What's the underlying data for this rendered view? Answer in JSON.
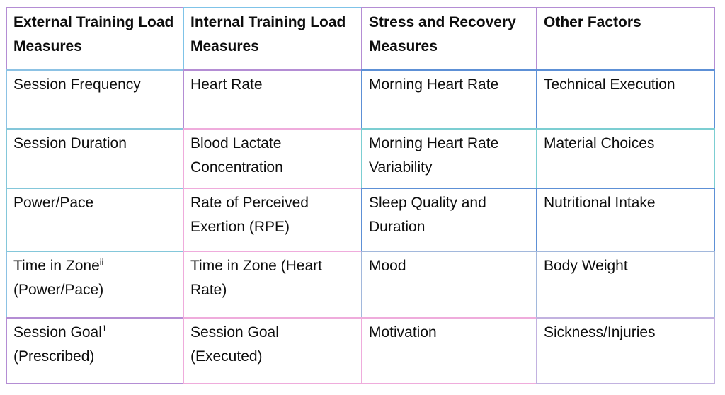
{
  "table": {
    "headers": [
      "External Training Load Measures",
      "Internal Training Load Measures",
      "Stress and Recovery Measures",
      "Other Factors"
    ],
    "rows": [
      [
        "Session Frequency",
        "Heart Rate",
        "Morning Heart Rate",
        "Technical Execution"
      ],
      [
        "Session Duration",
        "Blood Lactate Concentration",
        "Morning Heart Rate Variability",
        "Material Choices"
      ],
      [
        "Power/Pace",
        "Rate of Perceived Exertion (RPE)",
        "Sleep Quality and Duration",
        "Nutritional Intake"
      ],
      [
        [
          {
            "text": "Time in Zone"
          },
          {
            "text": "ii",
            "sup": true
          },
          {
            "text": " (Power/Pace)"
          }
        ],
        "Time in Zone (Heart Rate)",
        "Mood",
        "Body Weight"
      ],
      [
        [
          {
            "text": "Session Goal"
          },
          {
            "text": "1",
            "sup": true
          },
          {
            "text": " (Prescribed)"
          }
        ],
        "Session Goal (Executed)",
        "Motivation",
        "Sickness/Injuries"
      ]
    ],
    "border_palette": {
      "purple": "#b48dd4",
      "skyblue": "#7fc3e8",
      "ltblue": "#8cc2e4",
      "ltcyan": "#84c7da",
      "teal": "#7cced2",
      "blue": "#5d90d6",
      "pink": "#efacdc",
      "lavender": "#c2b2e0",
      "steelblue": "#a2b8dc"
    },
    "border_h": [
      [
        "purple",
        "skyblue",
        "purple",
        "purple"
      ],
      [
        "ltblue",
        "purple",
        "blue",
        "blue"
      ],
      [
        "ltcyan",
        "pink",
        "teal",
        "teal"
      ],
      [
        "ltcyan",
        "pink",
        "blue",
        "blue"
      ],
      [
        "ltcyan",
        "pink",
        "steelblue",
        "steelblue"
      ],
      [
        "purple",
        "pink",
        "pink",
        "lavender"
      ],
      [
        "purple",
        "pink",
        "pink",
        "lavender"
      ]
    ],
    "border_v": [
      [
        "purple",
        "skyblue",
        "purple",
        "purple",
        "purple"
      ],
      [
        "ltblue",
        "purple",
        "blue",
        "blue",
        "blue"
      ],
      [
        "ltcyan",
        "pink",
        "teal",
        "teal",
        "teal"
      ],
      [
        "ltcyan",
        "pink",
        "blue",
        "blue",
        "blue"
      ],
      [
        "ltblue",
        "pink",
        "steelblue",
        "steelblue",
        "steelblue"
      ],
      [
        "purple",
        "pink",
        "pink",
        "lavender",
        "lavender"
      ]
    ],
    "text_color": "#0d0d0d",
    "background_color": "#ffffff"
  }
}
